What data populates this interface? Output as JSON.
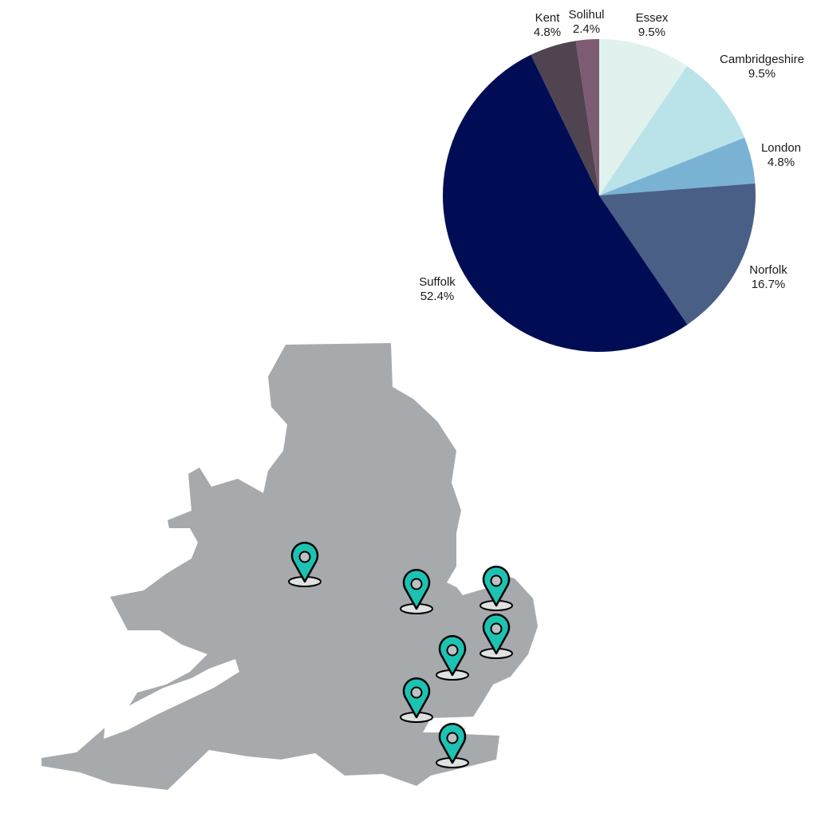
{
  "chart_data": {
    "type": "pie",
    "title": "",
    "slices": [
      {
        "label": "Essex",
        "pct_text": "9.5%",
        "value": 9.5,
        "color": "#e0f1ee"
      },
      {
        "label": "Cambridgeshire",
        "pct_text": "9.5%",
        "value": 9.5,
        "color": "#b9e3e8"
      },
      {
        "label": "London",
        "pct_text": "4.8%",
        "value": 4.8,
        "color": "#7ab2d4"
      },
      {
        "label": "Norfolk",
        "pct_text": "16.7%",
        "value": 16.7,
        "color": "#4a5f86"
      },
      {
        "label": "Suffolk",
        "pct_text": "52.4%",
        "value": 52.4,
        "color": "#000d55"
      },
      {
        "label": "Kent",
        "pct_text": "4.8%",
        "value": 4.8,
        "color": "#4f4450"
      },
      {
        "label": "Solihul",
        "pct_text": "2.4%",
        "value": 2.4,
        "color": "#7d5b72"
      }
    ]
  },
  "map": {
    "land_color": "#a6aaad",
    "pin_color": "#1cc3b3",
    "pin_count": 7,
    "pin_icon": "map-pin-icon"
  }
}
